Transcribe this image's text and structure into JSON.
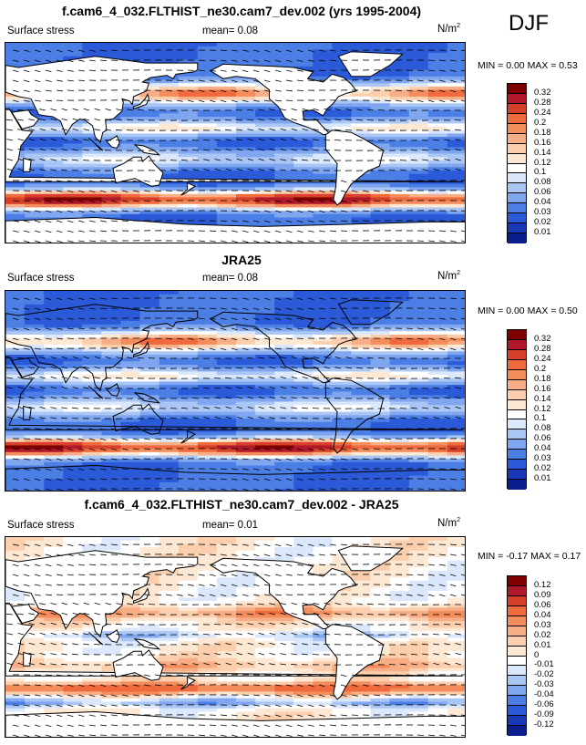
{
  "season": "DJF",
  "panels": [
    {
      "title": "f.cam6_4_032.FLTHIST_ne30.cam7_dev.002 (yrs 1995-2004)",
      "variable": "Surface stress",
      "mean": "mean=  0.08",
      "units": "N/m",
      "units_sup": "2",
      "minmax": "MIN =  0.00 MAX =  0.53",
      "levels": [
        "0.32",
        "0.28",
        "0.24",
        "0.2",
        "0.18",
        "0.16",
        "0.14",
        "0.12",
        "0.1",
        "0.08",
        "0.06",
        "0.04",
        "0.03",
        "0.02",
        "0.01"
      ],
      "colors": [
        "#7f0000",
        "#b2182b",
        "#d6402a",
        "#ef6a3c",
        "#f48d5c",
        "#f7ad86",
        "#fbcfad",
        "#fde8d4",
        "#ffffff",
        "#dbe8fb",
        "#a9c6f5",
        "#7fa6ee",
        "#4c7fe6",
        "#2a5ad8",
        "#1838b8",
        "#0a1f8f"
      ]
    },
    {
      "title": "JRA25",
      "variable": "Surface stress",
      "mean": "mean=  0.08",
      "units": "N/m",
      "units_sup": "2",
      "minmax": "MIN =  0.00 MAX =  0.50",
      "levels": [
        "0.32",
        "0.28",
        "0.24",
        "0.2",
        "0.18",
        "0.16",
        "0.14",
        "0.12",
        "0.1",
        "0.08",
        "0.06",
        "0.04",
        "0.03",
        "0.02",
        "0.01"
      ],
      "colors": [
        "#7f0000",
        "#b2182b",
        "#d6402a",
        "#ef6a3c",
        "#f48d5c",
        "#f7ad86",
        "#fbcfad",
        "#fde8d4",
        "#ffffff",
        "#dbe8fb",
        "#a9c6f5",
        "#7fa6ee",
        "#4c7fe6",
        "#2a5ad8",
        "#1838b8",
        "#0a1f8f"
      ]
    },
    {
      "title": "f.cam6_4_032.FLTHIST_ne30.cam7_dev.002 - JRA25",
      "variable": "Surface stress",
      "mean": "mean=  0.01",
      "units": "N/m",
      "units_sup": "2",
      "minmax": "MIN = -0.17 MAX =  0.17",
      "levels": [
        "0.12",
        "0.09",
        "0.06",
        "0.04",
        "0.03",
        "0.02",
        "0.01",
        "0",
        "-0.01",
        "-0.02",
        "-0.03",
        "-0.04",
        "-0.06",
        "-0.09",
        "-0.12"
      ],
      "colors": [
        "#7f0000",
        "#b2182b",
        "#d6402a",
        "#ef6a3c",
        "#f48d5c",
        "#f7ad86",
        "#fbcfad",
        "#fde8d4",
        "#ffffff",
        "#dbe8fb",
        "#a9c6f5",
        "#7fa6ee",
        "#4c7fe6",
        "#2a5ad8",
        "#1838b8",
        "#0a1f8f"
      ]
    }
  ]
}
